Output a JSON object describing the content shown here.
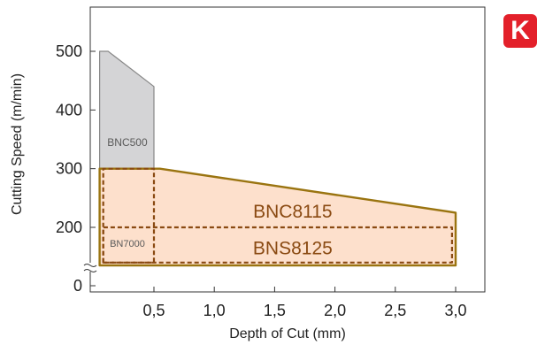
{
  "badge": {
    "letter": "K",
    "color": "#e3202a"
  },
  "chart_data": {
    "type": "area",
    "xlabel": "Depth of Cut (mm)",
    "ylabel": "Cutting Speed (m/min)",
    "xlim": [
      0,
      3.3
    ],
    "ylim": [
      0,
      550
    ],
    "y_axis_break": true,
    "x_ticks": [
      {
        "value": 0.5,
        "label": "0,5"
      },
      {
        "value": 1.0,
        "label": "1,0"
      },
      {
        "value": 1.5,
        "label": "1,5"
      },
      {
        "value": 2.0,
        "label": "2,0"
      },
      {
        "value": 2.5,
        "label": "2,5"
      },
      {
        "value": 3.0,
        "label": "3,0"
      }
    ],
    "y_ticks": [
      {
        "value": 0,
        "label": "0"
      },
      {
        "value": 200,
        "label": "200"
      },
      {
        "value": 300,
        "label": "300"
      },
      {
        "value": 400,
        "label": "400"
      },
      {
        "value": 500,
        "label": "500"
      }
    ],
    "grid": false,
    "legend": "none",
    "series": [
      {
        "name": "BNC500",
        "style": "gray-fill",
        "fill": "#d4d4d6",
        "stroke": "#888888",
        "polygon": [
          [
            0.05,
            135
          ],
          [
            0.05,
            500
          ],
          [
            0.12,
            500
          ],
          [
            0.5,
            440
          ],
          [
            0.5,
            135
          ]
        ]
      },
      {
        "name": "BN7000",
        "style": "gray-outline",
        "fill": "#cfcfd2",
        "stroke": "#888888",
        "polygon": [
          [
            0.05,
            135
          ],
          [
            0.05,
            210
          ],
          [
            0.5,
            210
          ],
          [
            0.5,
            135
          ]
        ]
      },
      {
        "name": "BNC8115",
        "style": "orange-fill",
        "fill": "#fde0cc",
        "stroke": "#9a7410",
        "polygon": [
          [
            0.05,
            135
          ],
          [
            0.05,
            300
          ],
          [
            0.55,
            300
          ],
          [
            3.0,
            225
          ],
          [
            3.0,
            135
          ]
        ]
      },
      {
        "name": "BNS8125",
        "style": "dashed-outline",
        "fill": "none",
        "stroke": "#8a4a12",
        "polygon": [
          [
            0.08,
            140
          ],
          [
            0.08,
            200
          ],
          [
            2.97,
            200
          ],
          [
            2.97,
            140
          ]
        ]
      },
      {
        "name": "BNC8115-dashed",
        "label_visible": false,
        "style": "dashed-outline",
        "fill": "none",
        "stroke": "#8a4a12",
        "polygon": [
          [
            0.08,
            140
          ],
          [
            0.08,
            300
          ],
          [
            0.5,
            300
          ],
          [
            0.5,
            140
          ]
        ]
      }
    ],
    "labels": [
      {
        "text": "BNC500",
        "x": 0.28,
        "y": 345,
        "size": 12,
        "color": "#5a5a5a"
      },
      {
        "text": "BN7000",
        "x": 0.28,
        "y": 173,
        "size": 11,
        "color": "#5a5a5a"
      },
      {
        "text": "BNC8115",
        "x": 1.65,
        "y": 228,
        "size": 21,
        "color": "#8a4a12"
      },
      {
        "text": "BNS8125",
        "x": 1.65,
        "y": 165,
        "size": 21,
        "color": "#8a4a12"
      }
    ]
  }
}
